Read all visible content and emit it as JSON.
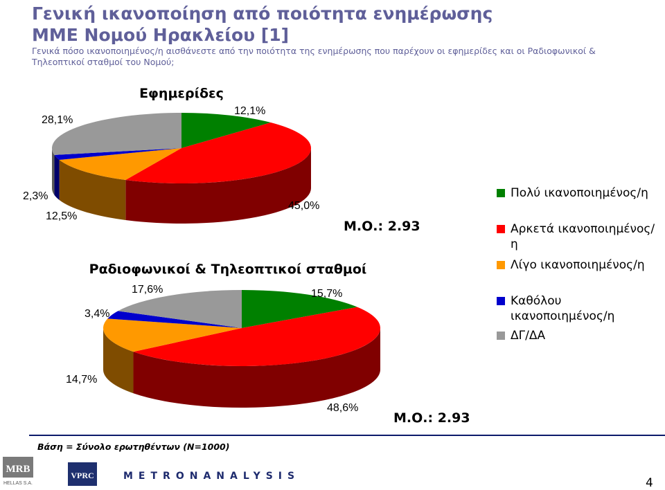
{
  "header": {
    "title_line1": "Γενική ικανοποίηση από ποιότητα ενημέρωσης",
    "title_line2": "ΜΜΕ Νομού Ηρακλείου [1]",
    "subtitle_line1": "Γενικά πόσο ικανοποιημένος/η αισθάνεστε από την ποιότητα της ενημέρωσης που παρέχουν οι εφημερίδες και οι Ραδιοφωνικοί &",
    "subtitle_line2": "Τηλεοπτικοί σταθμοί του Νομού;"
  },
  "colors": {
    "title": "#5f5f99",
    "series": [
      "#008000",
      "#ff0000",
      "#ff9900",
      "#0000cc",
      "#999999"
    ],
    "series_dark": [
      "#004d00",
      "#800000",
      "#7f4c00",
      "#00006a",
      "#595959"
    ]
  },
  "chart_data": [
    {
      "type": "pie",
      "title": "Εφημερίδες",
      "categories": [
        "Πολύ ικανοποιημένος/η",
        "Αρκετά ικανοποιημένος/η",
        "Λίγο ικανοποιημένος/η",
        "Καθόλου ικανοποιημένος/η",
        "ΔΓ/ΔΑ"
      ],
      "values": [
        12.1,
        45.0,
        12.5,
        2.3,
        28.1
      ],
      "value_labels": [
        "12,1%",
        "45,0%",
        "12,5%",
        "2,3%",
        "28,1%"
      ],
      "annotation": "Μ.Ο.: 2.93",
      "legend": "right"
    },
    {
      "type": "pie",
      "title": "Ραδιοφωνικοί & Τηλεοπτικοί σταθμοί",
      "categories": [
        "Πολύ ικανοποιημένος/η",
        "Αρκετά ικανοποιημένος/η",
        "Λίγο ικανοποιημένος/η",
        "Καθόλου ικανοποιημένος/η",
        "ΔΓ/ΔΑ"
      ],
      "values": [
        15.7,
        48.6,
        14.7,
        3.4,
        17.6
      ],
      "value_labels": [
        "15,7%",
        "48,6%",
        "14,7%",
        "3,4%",
        "17,6%"
      ],
      "annotation": "Μ.Ο.: 2.93",
      "legend": "right"
    }
  ],
  "legend": {
    "items": [
      {
        "label_lines": [
          "Πολύ ικανοποιημένος/η"
        ]
      },
      {
        "label_lines": [
          "Αρκετά ικανοποιημένος/η"
        ]
      },
      {
        "label_lines": [
          "Λίγο ικανοποιημένος/η"
        ]
      },
      {
        "label_lines": [
          "Καθόλου",
          "ικανοποιημένος/η"
        ]
      },
      {
        "label_lines": [
          "ΔΓ/ΔΑ"
        ]
      }
    ]
  },
  "footer": {
    "base_note": "Βάση = Σύνολο ερωτηθέντων (Ν=1000)",
    "metron": "METRONANALYSIS",
    "page_number": "4",
    "mrb_logo": "MRB",
    "mrb_logo_sub": "HELLAS S.A.",
    "vprc_logo": "VPRC"
  }
}
